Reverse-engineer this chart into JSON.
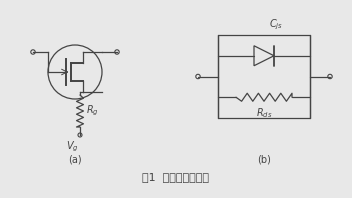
{
  "title": "图1  开关器件小意图",
  "label_a": "(a)",
  "label_b": "(b)",
  "bg_color": "#e8e8e8",
  "line_color": "#444444",
  "Rg_label": "$R_g$",
  "Vg_label": "$V_g$",
  "Cjs_label": "$C_{js}$",
  "Rds_label": "$R_{ds}$",
  "figsize": [
    3.52,
    1.98
  ],
  "dpi": 100
}
